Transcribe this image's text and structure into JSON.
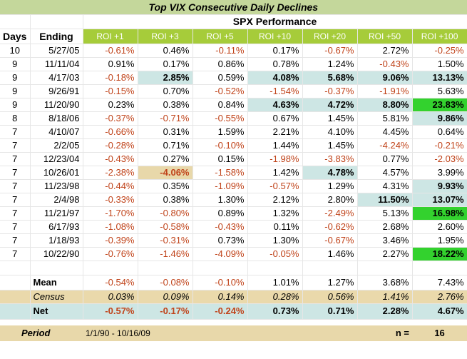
{
  "title": "Top VIX Consecutive Daily Declines",
  "group_header": "SPX Performance",
  "col_days": "Days",
  "col_ending": "Ending",
  "roi_headers": [
    "ROI +1",
    "ROI +3",
    "ROI +5",
    "ROI +10",
    "ROI +20",
    "ROI +50",
    "ROI +100"
  ],
  "rows": [
    {
      "days": "10",
      "ending": "5/27/05",
      "vals": [
        "-0.61%",
        "0.46%",
        "-0.11%",
        "0.17%",
        "-0.67%",
        "2.72%",
        "-0.25%"
      ],
      "hl": [
        "",
        "",
        "",
        "",
        "",
        "",
        ""
      ]
    },
    {
      "days": "9",
      "ending": "11/11/04",
      "vals": [
        "0.91%",
        "0.17%",
        "0.86%",
        "0.78%",
        "1.24%",
        "-0.43%",
        "1.50%"
      ],
      "hl": [
        "",
        "",
        "",
        "",
        "",
        "",
        ""
      ]
    },
    {
      "days": "9",
      "ending": "4/17/03",
      "vals": [
        "-0.18%",
        "2.85%",
        "0.59%",
        "4.08%",
        "5.68%",
        "9.06%",
        "13.13%"
      ],
      "hl": [
        "",
        "teal",
        "",
        "teal",
        "teal",
        "teal",
        "teal"
      ]
    },
    {
      "days": "9",
      "ending": "9/26/91",
      "vals": [
        "-0.15%",
        "0.70%",
        "-0.52%",
        "-1.54%",
        "-0.37%",
        "-1.91%",
        "5.63%"
      ],
      "hl": [
        "",
        "",
        "",
        "",
        "",
        "",
        ""
      ]
    },
    {
      "days": "9",
      "ending": "11/20/90",
      "vals": [
        "0.23%",
        "0.38%",
        "0.84%",
        "4.63%",
        "4.72%",
        "8.80%",
        "23.83%"
      ],
      "hl": [
        "",
        "",
        "",
        "teal",
        "teal",
        "teal",
        "green"
      ]
    },
    {
      "days": "8",
      "ending": "8/18/06",
      "vals": [
        "-0.37%",
        "-0.71%",
        "-0.55%",
        "0.67%",
        "1.45%",
        "5.81%",
        "9.86%"
      ],
      "hl": [
        "",
        "",
        "",
        "",
        "",
        "",
        "teal"
      ]
    },
    {
      "days": "7",
      "ending": "4/10/07",
      "vals": [
        "-0.66%",
        "0.31%",
        "1.59%",
        "2.21%",
        "4.10%",
        "4.45%",
        "0.64%"
      ],
      "hl": [
        "",
        "",
        "",
        "",
        "",
        "",
        ""
      ]
    },
    {
      "days": "7",
      "ending": "2/2/05",
      "vals": [
        "-0.28%",
        "0.71%",
        "-0.10%",
        "1.44%",
        "1.45%",
        "-4.24%",
        "-0.21%"
      ],
      "hl": [
        "",
        "",
        "",
        "",
        "",
        "",
        ""
      ]
    },
    {
      "days": "7",
      "ending": "12/23/04",
      "vals": [
        "-0.43%",
        "0.27%",
        "0.15%",
        "-1.98%",
        "-3.83%",
        "0.77%",
        "-2.03%"
      ],
      "hl": [
        "",
        "",
        "",
        "",
        "",
        "",
        ""
      ]
    },
    {
      "days": "7",
      "ending": "10/26/01",
      "vals": [
        "-2.38%",
        "-4.06%",
        "-1.58%",
        "1.42%",
        "4.78%",
        "4.57%",
        "3.99%"
      ],
      "hl": [
        "",
        "tan",
        "",
        "",
        "teal",
        "",
        ""
      ]
    },
    {
      "days": "7",
      "ending": "11/23/98",
      "vals": [
        "-0.44%",
        "0.35%",
        "-1.09%",
        "-0.57%",
        "1.29%",
        "4.31%",
        "9.93%"
      ],
      "hl": [
        "",
        "",
        "",
        "",
        "",
        "",
        "teal"
      ]
    },
    {
      "days": "7",
      "ending": "2/4/98",
      "vals": [
        "-0.33%",
        "0.38%",
        "1.30%",
        "2.12%",
        "2.80%",
        "11.50%",
        "13.07%"
      ],
      "hl": [
        "",
        "",
        "",
        "",
        "",
        "teal",
        "teal"
      ]
    },
    {
      "days": "7",
      "ending": "11/21/97",
      "vals": [
        "-1.70%",
        "-0.80%",
        "0.89%",
        "1.32%",
        "-2.49%",
        "5.13%",
        "16.98%"
      ],
      "hl": [
        "",
        "",
        "",
        "",
        "",
        "",
        "green"
      ]
    },
    {
      "days": "7",
      "ending": "6/17/93",
      "vals": [
        "-1.08%",
        "-0.58%",
        "-0.43%",
        "0.11%",
        "-0.62%",
        "2.68%",
        "2.60%"
      ],
      "hl": [
        "",
        "",
        "",
        "",
        "",
        "",
        ""
      ]
    },
    {
      "days": "7",
      "ending": "1/18/93",
      "vals": [
        "-0.39%",
        "-0.31%",
        "0.73%",
        "1.30%",
        "-0.67%",
        "3.46%",
        "1.95%"
      ],
      "hl": [
        "",
        "",
        "",
        "",
        "",
        "",
        ""
      ]
    },
    {
      "days": "7",
      "ending": "10/22/90",
      "vals": [
        "-0.76%",
        "-1.46%",
        "-4.09%",
        "-0.05%",
        "1.46%",
        "2.27%",
        "18.22%"
      ],
      "hl": [
        "",
        "",
        "",
        "",
        "",
        "",
        "green"
      ]
    }
  ],
  "mean": {
    "label": "Mean",
    "vals": [
      "-0.54%",
      "-0.08%",
      "-0.10%",
      "1.01%",
      "1.27%",
      "3.68%",
      "7.43%"
    ]
  },
  "census": {
    "label": "Census",
    "vals": [
      "0.03%",
      "0.09%",
      "0.14%",
      "0.28%",
      "0.56%",
      "1.41%",
      "2.76%"
    ]
  },
  "net": {
    "label": "Net",
    "vals": [
      "-0.57%",
      "-0.17%",
      "-0.24%",
      "0.73%",
      "0.71%",
      "2.28%",
      "4.67%"
    ]
  },
  "period": {
    "label": "Period",
    "value": "1/1/90 - 10/16/09",
    "n_label": "n =",
    "n_value": "16"
  },
  "colors": {
    "negative": "#c0431a",
    "header_green": "#a6cc3a",
    "highlight_teal": "#cde6e4",
    "highlight_green": "#33d22e",
    "highlight_tan": "#e8d8aa"
  }
}
